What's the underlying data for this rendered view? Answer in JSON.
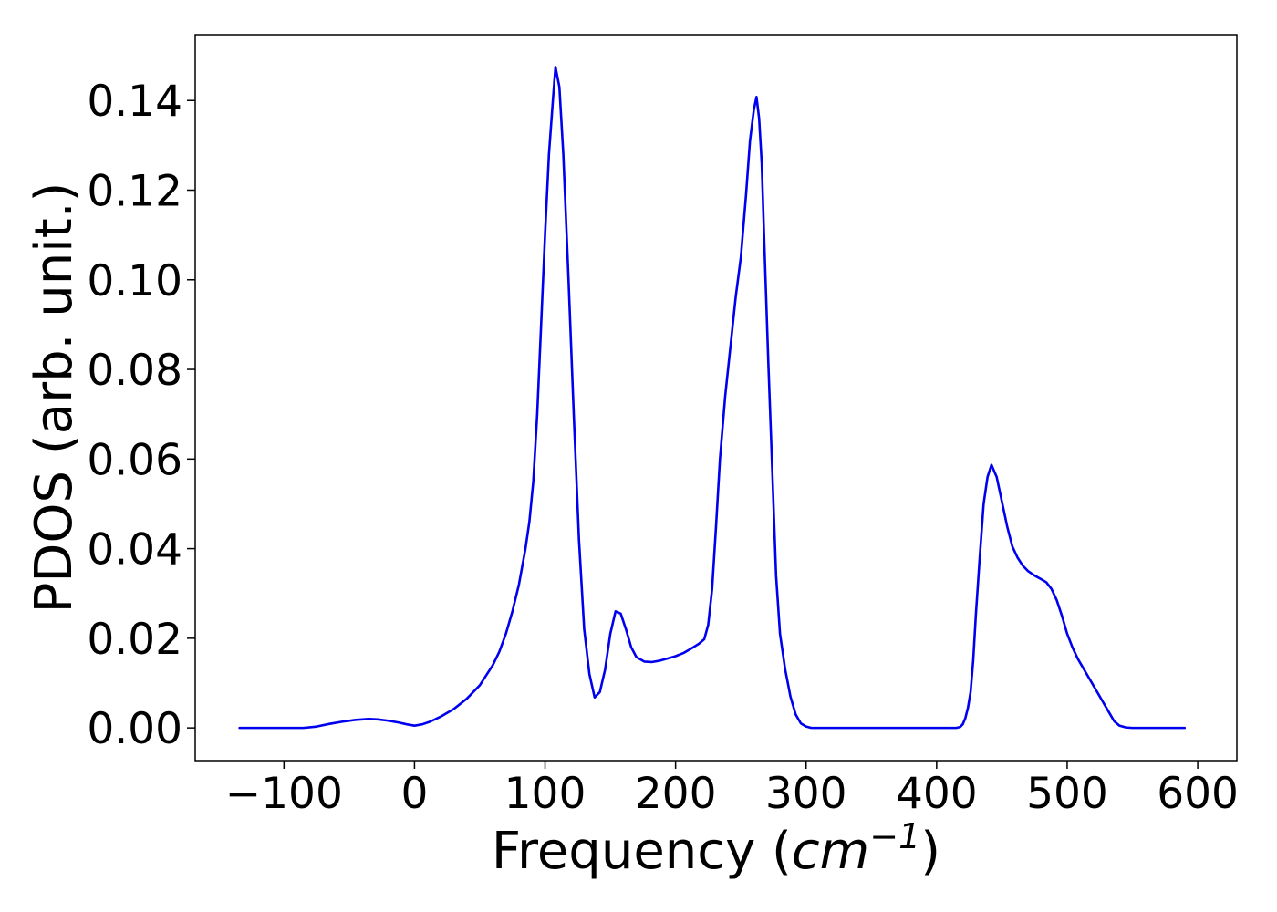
{
  "chart_data": {
    "type": "line",
    "title": "",
    "xlabel": "Frequency (",
    "xlabel_math": "cm",
    "xlabel_sup": "−1",
    "xlabel_end": ")",
    "ylabel": "PDOS (arb. unit.)",
    "xlim": [
      -168,
      630
    ],
    "ylim": [
      -0.0073,
      0.1547
    ],
    "x_ticks": [
      -100,
      0,
      100,
      200,
      300,
      400,
      500,
      600
    ],
    "x_tick_labels": [
      "−100",
      "0",
      "100",
      "200",
      "300",
      "400",
      "500",
      "600"
    ],
    "y_ticks": [
      0.0,
      0.02,
      0.04,
      0.06,
      0.08,
      0.1,
      0.12,
      0.14
    ],
    "y_tick_labels": [
      "0.00",
      "0.02",
      "0.04",
      "0.06",
      "0.08",
      "0.10",
      "0.12",
      "0.14"
    ],
    "grid": false,
    "legend": "none",
    "series": [
      {
        "color": "#0000ee",
        "x": [
          -134,
          -120,
          -100,
          -85,
          -75,
          -65,
          -55,
          -45,
          -35,
          -28,
          -20,
          -12,
          -6,
          0,
          6,
          12,
          20,
          30,
          40,
          50,
          60,
          65,
          70,
          75,
          80,
          85,
          88,
          91,
          94,
          97,
          100,
          103,
          106,
          108,
          111,
          114,
          118,
          122,
          126,
          130,
          134,
          138,
          142,
          146,
          150,
          154,
          158,
          162,
          166,
          170,
          176,
          182,
          188,
          194,
          200,
          206,
          212,
          218,
          222,
          225,
          228,
          231,
          234,
          238,
          242,
          246,
          250,
          254,
          257,
          260,
          262,
          264,
          266,
          268,
          271,
          274,
          277,
          280,
          284,
          288,
          292,
          296,
          300,
          304,
          310,
          320,
          340,
          360,
          380,
          400,
          410,
          415,
          418,
          420,
          422,
          424,
          426,
          428,
          430,
          433,
          436,
          439,
          442,
          446,
          450,
          454,
          458,
          462,
          466,
          470,
          475,
          480,
          484,
          488,
          492,
          496,
          500,
          504,
          508,
          512,
          516,
          520,
          524,
          528,
          532,
          536,
          540,
          545,
          550,
          560,
          570,
          580,
          590
        ],
        "y": [
          0.0,
          0.0,
          0.0,
          0.0,
          0.0003,
          0.0009,
          0.0014,
          0.0018,
          0.002,
          0.0019,
          0.0016,
          0.0012,
          0.0008,
          0.0005,
          0.0008,
          0.0014,
          0.0025,
          0.0042,
          0.0065,
          0.0095,
          0.014,
          0.017,
          0.021,
          0.026,
          0.032,
          0.04,
          0.046,
          0.055,
          0.07,
          0.09,
          0.11,
          0.128,
          0.14,
          0.1475,
          0.143,
          0.128,
          0.1,
          0.07,
          0.042,
          0.022,
          0.012,
          0.0068,
          0.008,
          0.013,
          0.021,
          0.026,
          0.0255,
          0.022,
          0.018,
          0.0158,
          0.0148,
          0.0147,
          0.015,
          0.0155,
          0.016,
          0.0167,
          0.0177,
          0.0188,
          0.0198,
          0.023,
          0.031,
          0.045,
          0.06,
          0.074,
          0.085,
          0.096,
          0.105,
          0.119,
          0.131,
          0.138,
          0.1408,
          0.136,
          0.126,
          0.108,
          0.082,
          0.058,
          0.034,
          0.021,
          0.013,
          0.007,
          0.003,
          0.001,
          0.0003,
          0.0,
          0.0,
          0.0,
          0.0,
          0.0,
          0.0,
          0.0,
          0.0,
          0.0,
          0.0002,
          0.0008,
          0.0022,
          0.0045,
          0.008,
          0.015,
          0.025,
          0.038,
          0.05,
          0.056,
          0.0587,
          0.056,
          0.0505,
          0.045,
          0.0405,
          0.038,
          0.0362,
          0.035,
          0.034,
          0.0332,
          0.0325,
          0.031,
          0.0285,
          0.025,
          0.021,
          0.018,
          0.0155,
          0.0135,
          0.0115,
          0.0095,
          0.0075,
          0.0055,
          0.0035,
          0.0015,
          0.0005,
          0.0001,
          0.0,
          0.0,
          0.0,
          0.0,
          0.0
        ]
      }
    ]
  }
}
